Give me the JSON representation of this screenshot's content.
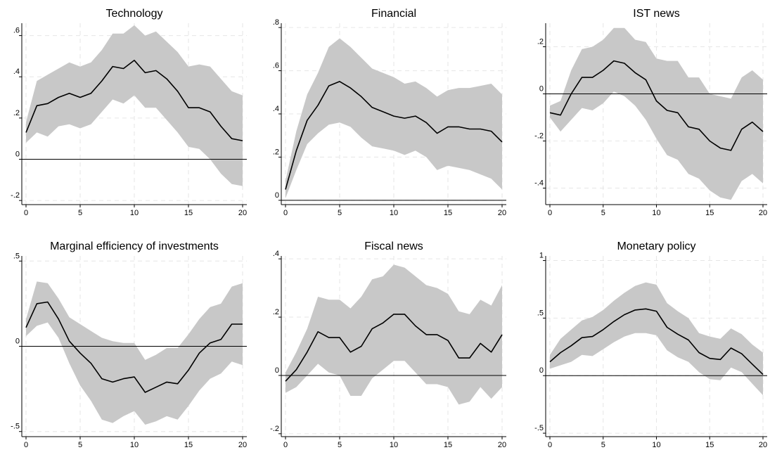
{
  "chart_data": [
    {
      "type": "area",
      "title": "Technology",
      "xlim": [
        0,
        20
      ],
      "ylim": [
        -0.22,
        0.66
      ],
      "xticks": [
        0,
        5,
        10,
        15,
        20
      ],
      "xtick_labels": [
        "0",
        "5",
        "10",
        "15",
        "20"
      ],
      "yticks": [
        -0.2,
        0,
        0.2,
        0.4,
        0.6
      ],
      "ytick_labels": [
        "-.2",
        "0",
        ".2",
        ".4",
        ".6"
      ],
      "grid": true,
      "x": [
        0,
        1,
        2,
        3,
        4,
        5,
        6,
        7,
        8,
        9,
        10,
        11,
        12,
        13,
        14,
        15,
        16,
        17,
        18,
        19,
        20
      ],
      "series": [
        {
          "values": [
            0.13,
            0.26,
            0.27,
            0.3,
            0.32,
            0.3,
            0.32,
            0.38,
            0.45,
            0.44,
            0.48,
            0.42,
            0.43,
            0.39,
            0.33,
            0.25,
            0.25,
            0.23,
            0.16,
            0.1,
            0.09
          ]
        }
      ],
      "lower": [
        0.08,
        0.13,
        0.11,
        0.16,
        0.17,
        0.15,
        0.17,
        0.23,
        0.29,
        0.27,
        0.31,
        0.25,
        0.25,
        0.19,
        0.13,
        0.06,
        0.05,
        0.0,
        -0.07,
        -0.12,
        -0.13
      ],
      "upper": [
        0.18,
        0.38,
        0.41,
        0.44,
        0.47,
        0.45,
        0.47,
        0.53,
        0.61,
        0.61,
        0.65,
        0.6,
        0.62,
        0.57,
        0.52,
        0.45,
        0.46,
        0.45,
        0.39,
        0.33,
        0.31
      ]
    },
    {
      "type": "area",
      "title": "Financial",
      "xlim": [
        0,
        20
      ],
      "ylim": [
        -0.02,
        0.82
      ],
      "xticks": [
        0,
        5,
        10,
        15,
        20
      ],
      "xtick_labels": [
        "0",
        "5",
        "10",
        "15",
        "20"
      ],
      "yticks": [
        0,
        0.2,
        0.4,
        0.6,
        0.8
      ],
      "ytick_labels": [
        "0",
        ".2",
        ".4",
        ".6",
        ".8"
      ],
      "grid": true,
      "x": [
        0,
        1,
        2,
        3,
        4,
        5,
        6,
        7,
        8,
        9,
        10,
        11,
        12,
        13,
        14,
        15,
        16,
        17,
        18,
        19,
        20
      ],
      "series": [
        {
          "values": [
            0.05,
            0.23,
            0.37,
            0.44,
            0.53,
            0.55,
            0.52,
            0.48,
            0.43,
            0.41,
            0.39,
            0.38,
            0.39,
            0.36,
            0.31,
            0.34,
            0.34,
            0.33,
            0.33,
            0.32,
            0.27
          ]
        }
      ],
      "lower": [
        0.01,
        0.14,
        0.26,
        0.31,
        0.35,
        0.36,
        0.34,
        0.29,
        0.25,
        0.24,
        0.23,
        0.21,
        0.23,
        0.2,
        0.14,
        0.16,
        0.15,
        0.14,
        0.12,
        0.1,
        0.05
      ],
      "upper": [
        0.09,
        0.32,
        0.49,
        0.59,
        0.71,
        0.75,
        0.71,
        0.66,
        0.61,
        0.59,
        0.57,
        0.54,
        0.55,
        0.52,
        0.48,
        0.51,
        0.52,
        0.52,
        0.53,
        0.54,
        0.49
      ]
    },
    {
      "type": "area",
      "title": "IST news",
      "xlim": [
        0,
        20
      ],
      "ylim": [
        -0.47,
        0.3
      ],
      "xticks": [
        0,
        5,
        10,
        15,
        20
      ],
      "xtick_labels": [
        "0",
        "5",
        "10",
        "15",
        "20"
      ],
      "yticks": [
        -0.4,
        -0.2,
        0,
        0.2
      ],
      "ytick_labels": [
        "-.4",
        "-.2",
        "0",
        ".2"
      ],
      "grid": true,
      "x": [
        0,
        1,
        2,
        3,
        4,
        5,
        6,
        7,
        8,
        9,
        10,
        11,
        12,
        13,
        14,
        15,
        16,
        17,
        18,
        19,
        20
      ],
      "series": [
        {
          "values": [
            -0.08,
            -0.09,
            0.0,
            0.07,
            0.07,
            0.1,
            0.14,
            0.13,
            0.09,
            0.06,
            -0.03,
            -0.07,
            -0.08,
            -0.14,
            -0.15,
            -0.2,
            -0.23,
            -0.24,
            -0.15,
            -0.12,
            -0.16
          ]
        }
      ],
      "lower": [
        -0.1,
        -0.16,
        -0.11,
        -0.06,
        -0.07,
        -0.04,
        0.01,
        -0.01,
        -0.05,
        -0.11,
        -0.19,
        -0.26,
        -0.28,
        -0.34,
        -0.36,
        -0.41,
        -0.44,
        -0.45,
        -0.37,
        -0.34,
        -0.38
      ],
      "upper": [
        -0.05,
        -0.03,
        0.1,
        0.19,
        0.2,
        0.23,
        0.28,
        0.28,
        0.23,
        0.22,
        0.15,
        0.14,
        0.14,
        0.07,
        0.07,
        0.0,
        -0.01,
        -0.02,
        0.07,
        0.1,
        0.06
      ]
    },
    {
      "type": "area",
      "title": "Marginal efficiency of investments",
      "xlim": [
        0,
        20
      ],
      "ylim": [
        -0.53,
        0.53
      ],
      "xticks": [
        0,
        5,
        10,
        15,
        20
      ],
      "xtick_labels": [
        "0",
        "5",
        "10",
        "15",
        "20"
      ],
      "yticks": [
        -0.5,
        0,
        0.5
      ],
      "ytick_labels": [
        "-.5",
        "0",
        ".5"
      ],
      "grid": true,
      "x": [
        0,
        1,
        2,
        3,
        4,
        5,
        6,
        7,
        8,
        9,
        10,
        11,
        12,
        13,
        14,
        15,
        16,
        17,
        18,
        19,
        20
      ],
      "series": [
        {
          "values": [
            0.11,
            0.25,
            0.26,
            0.16,
            0.03,
            -0.04,
            -0.1,
            -0.19,
            -0.21,
            -0.19,
            -0.18,
            -0.27,
            -0.24,
            -0.21,
            -0.22,
            -0.14,
            -0.04,
            0.02,
            0.04,
            0.13,
            0.13
          ]
        }
      ],
      "lower": [
        0.06,
        0.12,
        0.14,
        0.05,
        -0.1,
        -0.23,
        -0.32,
        -0.43,
        -0.45,
        -0.41,
        -0.38,
        -0.46,
        -0.44,
        -0.41,
        -0.43,
        -0.35,
        -0.26,
        -0.19,
        -0.16,
        -0.09,
        -0.11
      ],
      "upper": [
        0.16,
        0.38,
        0.37,
        0.28,
        0.17,
        0.13,
        0.09,
        0.05,
        0.03,
        0.02,
        0.02,
        -0.08,
        -0.05,
        -0.01,
        -0.01,
        0.07,
        0.16,
        0.23,
        0.25,
        0.35,
        0.37
      ]
    },
    {
      "type": "area",
      "title": "Fiscal news",
      "xlim": [
        0,
        20
      ],
      "ylim": [
        -0.21,
        0.41
      ],
      "xticks": [
        0,
        5,
        10,
        15,
        20
      ],
      "xtick_labels": [
        "0",
        "5",
        "10",
        "15",
        "20"
      ],
      "yticks": [
        -0.2,
        0,
        0.2,
        0.4
      ],
      "ytick_labels": [
        "-.2",
        "0",
        ".2",
        ".4"
      ],
      "grid": true,
      "x": [
        0,
        1,
        2,
        3,
        4,
        5,
        6,
        7,
        8,
        9,
        10,
        11,
        12,
        13,
        14,
        15,
        16,
        17,
        18,
        19,
        20
      ],
      "series": [
        {
          "values": [
            -0.02,
            0.02,
            0.08,
            0.15,
            0.13,
            0.13,
            0.08,
            0.1,
            0.16,
            0.18,
            0.21,
            0.21,
            0.17,
            0.14,
            0.14,
            0.12,
            0.06,
            0.06,
            0.11,
            0.08,
            0.14
          ]
        }
      ],
      "lower": [
        -0.06,
        -0.04,
        0.0,
        0.04,
        0.01,
        0.0,
        -0.07,
        -0.07,
        -0.01,
        0.02,
        0.05,
        0.05,
        0.01,
        -0.03,
        -0.03,
        -0.04,
        -0.1,
        -0.09,
        -0.04,
        -0.08,
        -0.04
      ],
      "upper": [
        0.01,
        0.08,
        0.16,
        0.27,
        0.26,
        0.26,
        0.23,
        0.27,
        0.33,
        0.34,
        0.38,
        0.37,
        0.34,
        0.31,
        0.3,
        0.28,
        0.22,
        0.21,
        0.26,
        0.24,
        0.31
      ]
    },
    {
      "type": "area",
      "title": "Monetary policy",
      "xlim": [
        0,
        20
      ],
      "ylim": [
        -0.53,
        1.04
      ],
      "xticks": [
        0,
        5,
        10,
        15,
        20
      ],
      "xtick_labels": [
        "0",
        "5",
        "10",
        "15",
        "20"
      ],
      "yticks": [
        -0.5,
        0,
        0.5,
        1
      ],
      "ytick_labels": [
        "-.5",
        "0",
        ".5",
        "1"
      ],
      "grid": true,
      "x": [
        0,
        1,
        2,
        3,
        4,
        5,
        6,
        7,
        8,
        9,
        10,
        11,
        12,
        13,
        14,
        15,
        16,
        17,
        18,
        19,
        20
      ],
      "series": [
        {
          "values": [
            0.12,
            0.2,
            0.26,
            0.33,
            0.34,
            0.4,
            0.47,
            0.53,
            0.57,
            0.58,
            0.56,
            0.42,
            0.36,
            0.31,
            0.2,
            0.15,
            0.14,
            0.24,
            0.19,
            0.1,
            0.01
          ]
        }
      ],
      "lower": [
        0.06,
        0.09,
        0.12,
        0.18,
        0.17,
        0.23,
        0.29,
        0.34,
        0.37,
        0.37,
        0.35,
        0.22,
        0.16,
        0.12,
        0.03,
        -0.03,
        -0.04,
        0.07,
        0.03,
        -0.07,
        -0.17
      ],
      "upper": [
        0.18,
        0.32,
        0.4,
        0.48,
        0.51,
        0.57,
        0.65,
        0.72,
        0.78,
        0.81,
        0.79,
        0.63,
        0.56,
        0.5,
        0.37,
        0.34,
        0.32,
        0.41,
        0.36,
        0.27,
        0.2
      ]
    }
  ]
}
